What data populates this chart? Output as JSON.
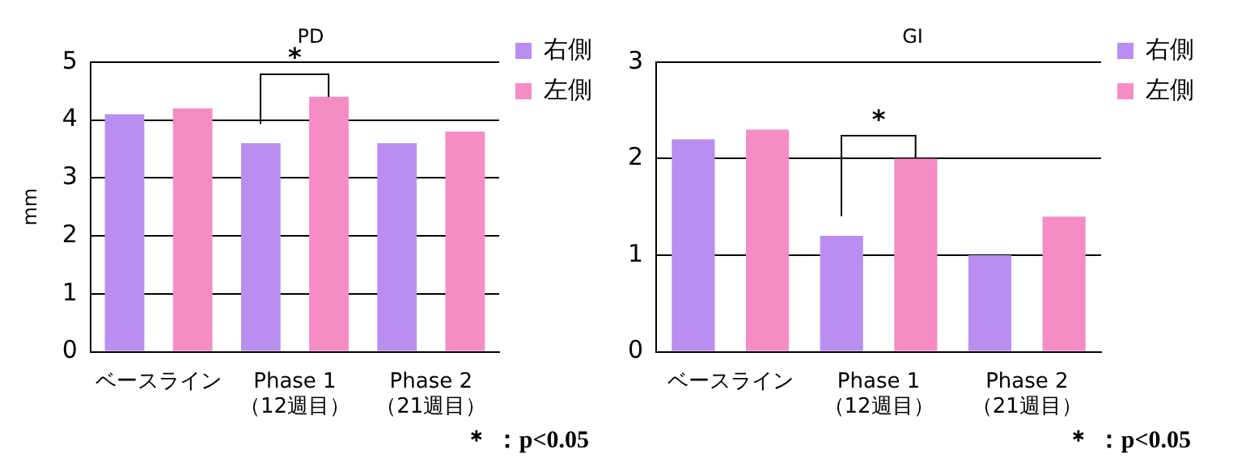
{
  "chart_data": [
    {
      "type": "bar",
      "title": "PD",
      "ylabel": "mm",
      "categories": [
        "ベースライン",
        "Phase 1\n（12週目）",
        "Phase 2\n（21週目）"
      ],
      "series": [
        {
          "name": "右側",
          "color": "#b98ef0",
          "values": [
            4.1,
            3.6,
            3.6
          ]
        },
        {
          "name": "左側",
          "color": "#f68cc4",
          "values": [
            4.2,
            4.4,
            3.8
          ]
        }
      ],
      "ylim": [
        0,
        5
      ],
      "yticks": [
        0,
        1,
        2,
        3,
        4,
        5
      ],
      "grid": "y",
      "legend": "top right",
      "annotations": [
        "*",
        "＊ ：p<0.05"
      ]
    },
    {
      "type": "bar",
      "title": "GI",
      "categories": [
        "ベースライン",
        "Phase 1\n（12週目）",
        "Phase 2\n（21週目）"
      ],
      "series": [
        {
          "name": "右側",
          "color": "#b98ef0",
          "values": [
            2.2,
            1.2,
            1.0
          ]
        },
        {
          "name": "左側",
          "color": "#f68cc4",
          "values": [
            2.3,
            2.0,
            1.4
          ]
        }
      ],
      "ylim": [
        0,
        3
      ],
      "yticks": [
        0,
        1,
        2,
        3
      ],
      "grid": "y",
      "legend": "top right",
      "annotations": [
        "*",
        "＊ ：p<0.05"
      ]
    }
  ]
}
